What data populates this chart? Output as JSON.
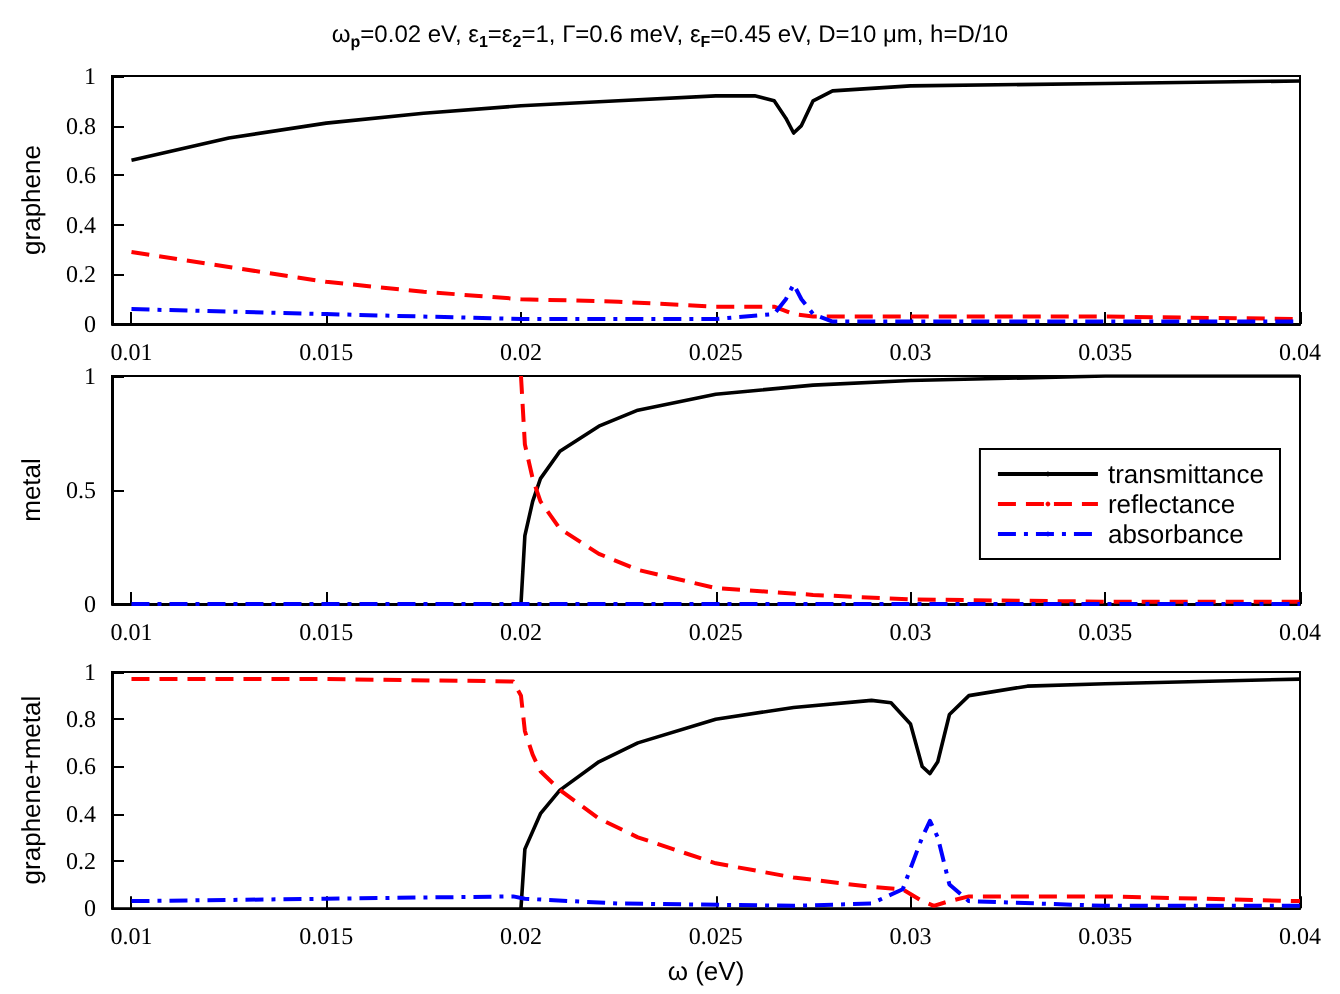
{
  "chart_data": [
    {
      "type": "line",
      "title": "ω$_{p}$=0.02 eV, ε$_{1}$=ε$_{2}$=1, Γ=0.6 meV, ε$_{F}$=0.45 eV, D=10 μm, h=D/10",
      "ylabel": "graphene",
      "xlim": [
        0.0095,
        0.04
      ],
      "xticks": [
        0.01,
        0.015,
        0.02,
        0.025,
        0.03,
        0.035,
        0.04
      ],
      "ylim": [
        0,
        1
      ],
      "yticks": [
        0,
        0.2,
        0.4,
        0.6,
        0.8,
        1
      ],
      "grid": false,
      "legend": false,
      "marker": "none",
      "series": [
        {
          "color": "#000000",
          "line_style": "solid",
          "x": [
            0.01,
            0.0125,
            0.015,
            0.0175,
            0.02,
            0.0225,
            0.025,
            0.026,
            0.0265,
            0.0268,
            0.027,
            0.0272,
            0.0275,
            0.028,
            0.03,
            0.035,
            0.04
          ],
          "values": [
            0.66,
            0.75,
            0.81,
            0.85,
            0.88,
            0.9,
            0.92,
            0.92,
            0.9,
            0.83,
            0.77,
            0.8,
            0.9,
            0.94,
            0.96,
            0.97,
            0.98
          ]
        },
        {
          "color": "#ff0000",
          "line_style": "dashed",
          "x": [
            0.01,
            0.0125,
            0.015,
            0.0175,
            0.02,
            0.0225,
            0.025,
            0.0265,
            0.027,
            0.0275,
            0.028,
            0.03,
            0.035,
            0.04
          ],
          "values": [
            0.29,
            0.23,
            0.17,
            0.13,
            0.1,
            0.09,
            0.07,
            0.07,
            0.04,
            0.03,
            0.03,
            0.03,
            0.03,
            0.02
          ]
        },
        {
          "color": "#0000ff",
          "line_style": "dashdot",
          "x": [
            0.01,
            0.015,
            0.02,
            0.025,
            0.0265,
            0.0268,
            0.027,
            0.0272,
            0.0275,
            0.028,
            0.035,
            0.04
          ],
          "values": [
            0.06,
            0.04,
            0.02,
            0.02,
            0.04,
            0.1,
            0.16,
            0.1,
            0.04,
            0.01,
            0.01,
            0.01
          ]
        }
      ]
    },
    {
      "type": "line",
      "ylabel": "metal",
      "xlim": [
        0.0095,
        0.04
      ],
      "xticks": [
        0.01,
        0.015,
        0.02,
        0.025,
        0.03,
        0.035,
        0.04
      ],
      "ylim": [
        0,
        1
      ],
      "yticks": [
        0,
        0.5,
        1
      ],
      "grid": false,
      "legend": "right",
      "marker": "none",
      "series": [
        {
          "name": "transmittance",
          "color": "#000000",
          "line_style": "solid",
          "x": [
            0.02,
            0.0201,
            0.0203,
            0.0205,
            0.021,
            0.022,
            0.023,
            0.025,
            0.0275,
            0.03,
            0.035,
            0.04
          ],
          "values": [
            0,
            0.3,
            0.45,
            0.55,
            0.67,
            0.78,
            0.85,
            0.92,
            0.96,
            0.98,
            1,
            1
          ]
        },
        {
          "name": "reflectance",
          "color": "#ff0000",
          "line_style": "dashed",
          "x": [
            0.02,
            0.0201,
            0.0203,
            0.0205,
            0.021,
            0.022,
            0.023,
            0.025,
            0.0275,
            0.03,
            0.035,
            0.04
          ],
          "values": [
            1,
            0.7,
            0.55,
            0.45,
            0.33,
            0.22,
            0.15,
            0.07,
            0.04,
            0.02,
            0.01,
            0.01
          ]
        },
        {
          "name": "absorbance",
          "color": "#0000ff",
          "line_style": "dashdot",
          "x": [
            0.01,
            0.04
          ],
          "values": [
            0,
            0
          ]
        }
      ]
    },
    {
      "type": "line",
      "ylabel": "graphene+metal",
      "xlabel": "ω (eV)",
      "xlim": [
        0.0095,
        0.04
      ],
      "xticks": [
        0.01,
        0.015,
        0.02,
        0.025,
        0.03,
        0.035,
        0.04
      ],
      "ylim": [
        0,
        1
      ],
      "yticks": [
        0,
        0.2,
        0.4,
        0.6,
        0.8,
        1
      ],
      "grid": false,
      "legend": false,
      "marker": "none",
      "series": [
        {
          "color": "#000000",
          "line_style": "solid",
          "x": [
            0.02,
            0.0201,
            0.0205,
            0.021,
            0.022,
            0.023,
            0.025,
            0.027,
            0.029,
            0.0295,
            0.03,
            0.0303,
            0.0305,
            0.0307,
            0.031,
            0.0315,
            0.033,
            0.035,
            0.04
          ],
          "values": [
            0,
            0.25,
            0.4,
            0.5,
            0.62,
            0.7,
            0.8,
            0.85,
            0.88,
            0.87,
            0.78,
            0.6,
            0.57,
            0.62,
            0.82,
            0.9,
            0.94,
            0.95,
            0.97
          ]
        },
        {
          "color": "#ff0000",
          "line_style": "dashed",
          "x": [
            0.01,
            0.015,
            0.0198,
            0.02,
            0.0201,
            0.0203,
            0.0205,
            0.021,
            0.022,
            0.023,
            0.025,
            0.027,
            0.029,
            0.0298,
            0.0303,
            0.0306,
            0.031,
            0.0315,
            0.035,
            0.04
          ],
          "values": [
            0.97,
            0.97,
            0.96,
            0.9,
            0.75,
            0.65,
            0.58,
            0.5,
            0.38,
            0.3,
            0.19,
            0.13,
            0.09,
            0.08,
            0.03,
            0.01,
            0.03,
            0.05,
            0.05,
            0.03
          ]
        },
        {
          "color": "#0000ff",
          "line_style": "dashdot",
          "x": [
            0.01,
            0.015,
            0.0198,
            0.0201,
            0.0225,
            0.027,
            0.029,
            0.0298,
            0.0303,
            0.0305,
            0.0307,
            0.031,
            0.0315,
            0.035,
            0.04
          ],
          "values": [
            0.03,
            0.04,
            0.05,
            0.04,
            0.02,
            0.01,
            0.02,
            0.08,
            0.3,
            0.37,
            0.3,
            0.1,
            0.03,
            0.01,
            0.01
          ]
        }
      ]
    }
  ]
}
